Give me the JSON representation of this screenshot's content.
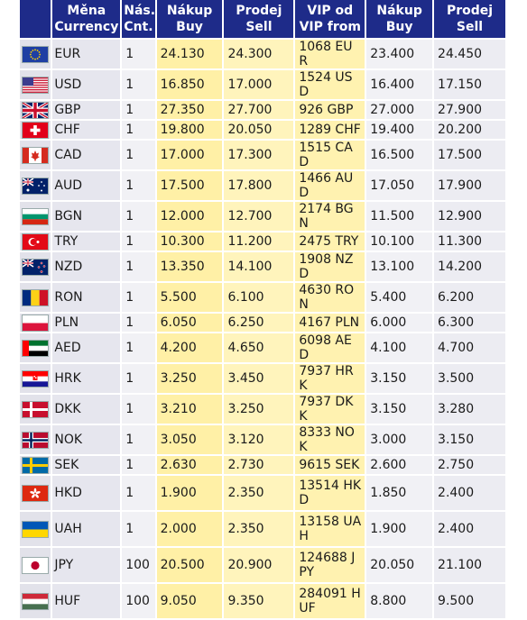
{
  "header": {
    "currency": [
      "Měna",
      "Currency"
    ],
    "count": [
      "Nás.",
      "Cnt."
    ],
    "buy": [
      "Nákup",
      "Buy"
    ],
    "sell": [
      "Prodej",
      "Sell"
    ],
    "vip": [
      "VIP od",
      "VIP from"
    ],
    "buy2": [
      "Nákup",
      "Buy"
    ],
    "sell2": [
      "Prodej",
      "Sell"
    ]
  },
  "rows": [
    {
      "flag": "eu-flag-icon",
      "code": "EUR",
      "cnt": "1",
      "buy": "24.130",
      "sell": "24.300",
      "vip": "1068 EUR",
      "buy2": "23.400",
      "sell2": "24.450"
    },
    {
      "flag": "us-flag-icon",
      "code": "USD",
      "cnt": "1",
      "buy": "16.850",
      "sell": "17.000",
      "vip": "1524 USD",
      "buy2": "16.400",
      "sell2": "17.150"
    },
    {
      "flag": "gb-flag-icon",
      "code": "GBP",
      "cnt": "1",
      "buy": "27.350",
      "sell": "27.700",
      "vip": "926 GBP",
      "buy2": "27.000",
      "sell2": "27.900"
    },
    {
      "flag": "ch-flag-icon",
      "code": "CHF",
      "cnt": "1",
      "buy": "19.800",
      "sell": "20.050",
      "vip": "1289 CHF",
      "buy2": "19.400",
      "sell2": "20.200"
    },
    {
      "flag": "ca-flag-icon",
      "code": "CAD",
      "cnt": "1",
      "buy": "17.000",
      "sell": "17.300",
      "vip": "1515 CAD",
      "buy2": "16.500",
      "sell2": "17.500"
    },
    {
      "flag": "au-flag-icon",
      "code": "AUD",
      "cnt": "1",
      "buy": "17.500",
      "sell": "17.800",
      "vip": "1466 AUD",
      "buy2": "17.050",
      "sell2": "17.900"
    },
    {
      "flag": "bg-flag-icon",
      "code": "BGN",
      "cnt": "1",
      "buy": "12.000",
      "sell": "12.700",
      "vip": "2174 BGN",
      "buy2": "11.500",
      "sell2": "12.900"
    },
    {
      "flag": "tr-flag-icon",
      "code": "TRY",
      "cnt": "1",
      "buy": "10.300",
      "sell": "11.200",
      "vip": "2475 TRY",
      "buy2": "10.100",
      "sell2": "11.300"
    },
    {
      "flag": "nz-flag-icon",
      "code": "NZD",
      "cnt": "1",
      "buy": "13.350",
      "sell": "14.100",
      "vip": "1908 NZD",
      "buy2": "13.100",
      "sell2": "14.200"
    },
    {
      "flag": "ro-flag-icon",
      "code": "RON",
      "cnt": "1",
      "buy": "5.500",
      "sell": "6.100",
      "vip": "4630 RON",
      "buy2": "5.400",
      "sell2": "6.200"
    },
    {
      "flag": "pl-flag-icon",
      "code": "PLN",
      "cnt": "1",
      "buy": "6.050",
      "sell": "6.250",
      "vip": "4167 PLN",
      "buy2": "6.000",
      "sell2": "6.300"
    },
    {
      "flag": "ae-flag-icon",
      "code": "AED",
      "cnt": "1",
      "buy": "4.200",
      "sell": "4.650",
      "vip": "6098 AED",
      "buy2": "4.100",
      "sell2": "4.700"
    },
    {
      "flag": "hr-flag-icon",
      "code": "HRK",
      "cnt": "1",
      "buy": "3.250",
      "sell": "3.450",
      "vip": "7937 HRK",
      "buy2": "3.150",
      "sell2": "3.500"
    },
    {
      "flag": "dk-flag-icon",
      "code": "DKK",
      "cnt": "1",
      "buy": "3.210",
      "sell": "3.250",
      "vip": "7937 DKK",
      "buy2": "3.150",
      "sell2": "3.280"
    },
    {
      "flag": "no-flag-icon",
      "code": "NOK",
      "cnt": "1",
      "buy": "3.050",
      "sell": "3.120",
      "vip": "8333 NOK",
      "buy2": "3.000",
      "sell2": "3.150"
    },
    {
      "flag": "se-flag-icon",
      "code": "SEK",
      "cnt": "1",
      "buy": "2.630",
      "sell": "2.730",
      "vip": "9615 SEK",
      "buy2": "2.600",
      "sell2": "2.750"
    },
    {
      "flag": "hk-flag-icon",
      "code": "HKD",
      "cnt": "1",
      "buy": "1.900",
      "sell": "2.350",
      "vip": "13514 HKD",
      "buy2": "1.850",
      "sell2": "2.400"
    },
    {
      "flag": "ua-flag-icon",
      "code": "UAH",
      "cnt": "1",
      "buy": "2.000",
      "sell": "2.350",
      "vip": "13158 UAH",
      "buy2": "1.900",
      "sell2": "2.400"
    },
    {
      "flag": "jp-flag-icon",
      "code": "JPY",
      "cnt": "100",
      "buy": "20.500",
      "sell": "20.900",
      "vip": "124688 JPY",
      "buy2": "20.050",
      "sell2": "21.100"
    },
    {
      "flag": "hu-flag-icon",
      "code": "HUF",
      "cnt": "100",
      "buy": "9.050",
      "sell": "9.350",
      "vip": "284091 HUF",
      "buy2": "8.800",
      "sell2": "9.500"
    }
  ],
  "colors": {
    "header_bg": "#1e2b89",
    "header_text": "#ffffff",
    "yellow": "#fff0a6",
    "grey": "#e6e6ee"
  }
}
